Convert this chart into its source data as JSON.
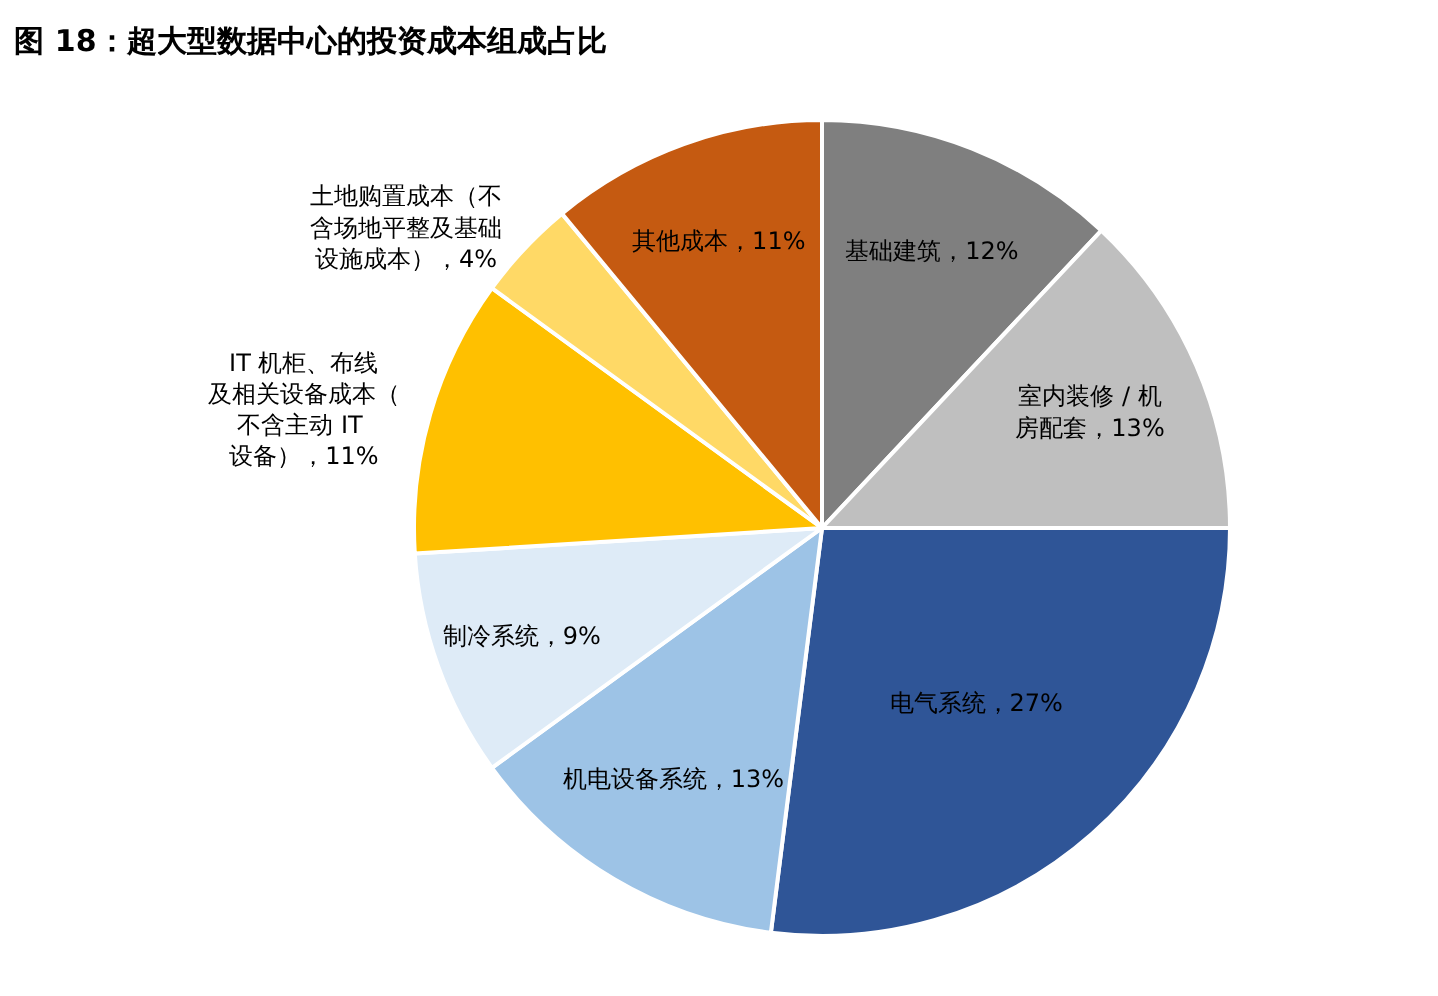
{
  "chart_data": {
    "type": "pie",
    "title": "图 18：超大型数据中心的投资成本组成占比",
    "categories": [
      "基础建筑",
      "室内装修 / 机房配套",
      "电气系统",
      "机电设备系统",
      "制冷系统",
      "IT 机柜、布线及相关设备成本（不含主动 IT 设备）",
      "土地购置成本（不含场地平整及基础设施成本）",
      "其他成本"
    ],
    "values": [
      12,
      13,
      27,
      13,
      9,
      11,
      4,
      11
    ],
    "colors": [
      "#7f7f7f",
      "#bfbfbf",
      "#2f5597",
      "#9dc3e6",
      "#deebf7",
      "#ffc000",
      "#ffd966",
      "#c55a11"
    ],
    "value_labels": [
      "，12%",
      "，13%",
      "，27%",
      "，13%",
      "，9%",
      "，11%",
      "，4%",
      "，11%"
    ],
    "legend": false
  }
}
